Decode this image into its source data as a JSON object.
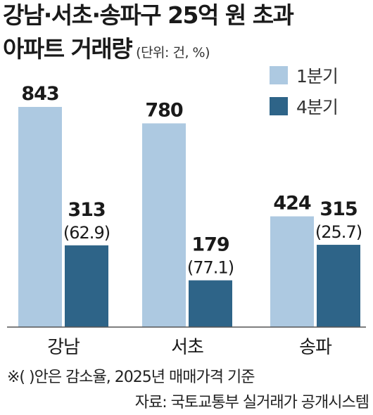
{
  "title_line1": "강남·서초·송파구 25억 원 초과",
  "title_line2": "아파트 거래량",
  "unit": "(단위: 건, %)",
  "legend": [
    {
      "label": "1분기",
      "color": "#adc9e1"
    },
    {
      "label": "4분기",
      "color": "#2e6488"
    }
  ],
  "chart_data": {
    "type": "bar",
    "categories": [
      "강남",
      "서초",
      "송파"
    ],
    "series": [
      {
        "name": "1분기",
        "color": "#adc9e1",
        "values": [
          843,
          780,
          424
        ],
        "labels": [
          "843",
          "780",
          "424"
        ],
        "sublabels": [
          "",
          "",
          ""
        ]
      },
      {
        "name": "4분기",
        "color": "#2e6488",
        "values": [
          313,
          179,
          315
        ],
        "labels": [
          "313",
          "179",
          "315"
        ],
        "sublabels": [
          "(62.9)",
          "(77.1)",
          "(25.7)"
        ]
      }
    ]
  },
  "note": "※( )안은 감소율, 2025년 매매가격 기준",
  "source": "자료: 국토교통부 실거래가 공개시스템"
}
